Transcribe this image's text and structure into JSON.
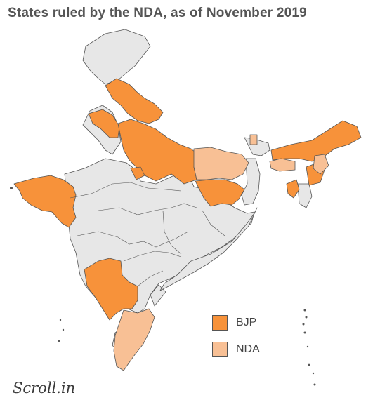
{
  "title": "States ruled by the NDA, as of November 2019",
  "colors": {
    "bjp": "#f7923a",
    "nda": "#f8c095",
    "other": "#e7e7e7",
    "border": "#555555"
  },
  "legend": [
    {
      "label": "BJP",
      "color": "#f7923a"
    },
    {
      "label": "NDA",
      "color": "#f8c095"
    }
  ],
  "brand": "Scroll.in",
  "map": {
    "bjp_states": [
      "Uttarakhand",
      "Haryana",
      "Uttar Pradesh",
      "Gujarat",
      "Jharkhand",
      "Karnataka",
      "Himachal Pradesh",
      "Assam",
      "Arunachal Pradesh",
      "Manipur",
      "Tripura",
      "Goa"
    ],
    "nda_states": [
      "Bihar",
      "Tamil Nadu",
      "Sikkim",
      "Meghalaya",
      "Nagaland",
      "Mizoram"
    ]
  }
}
